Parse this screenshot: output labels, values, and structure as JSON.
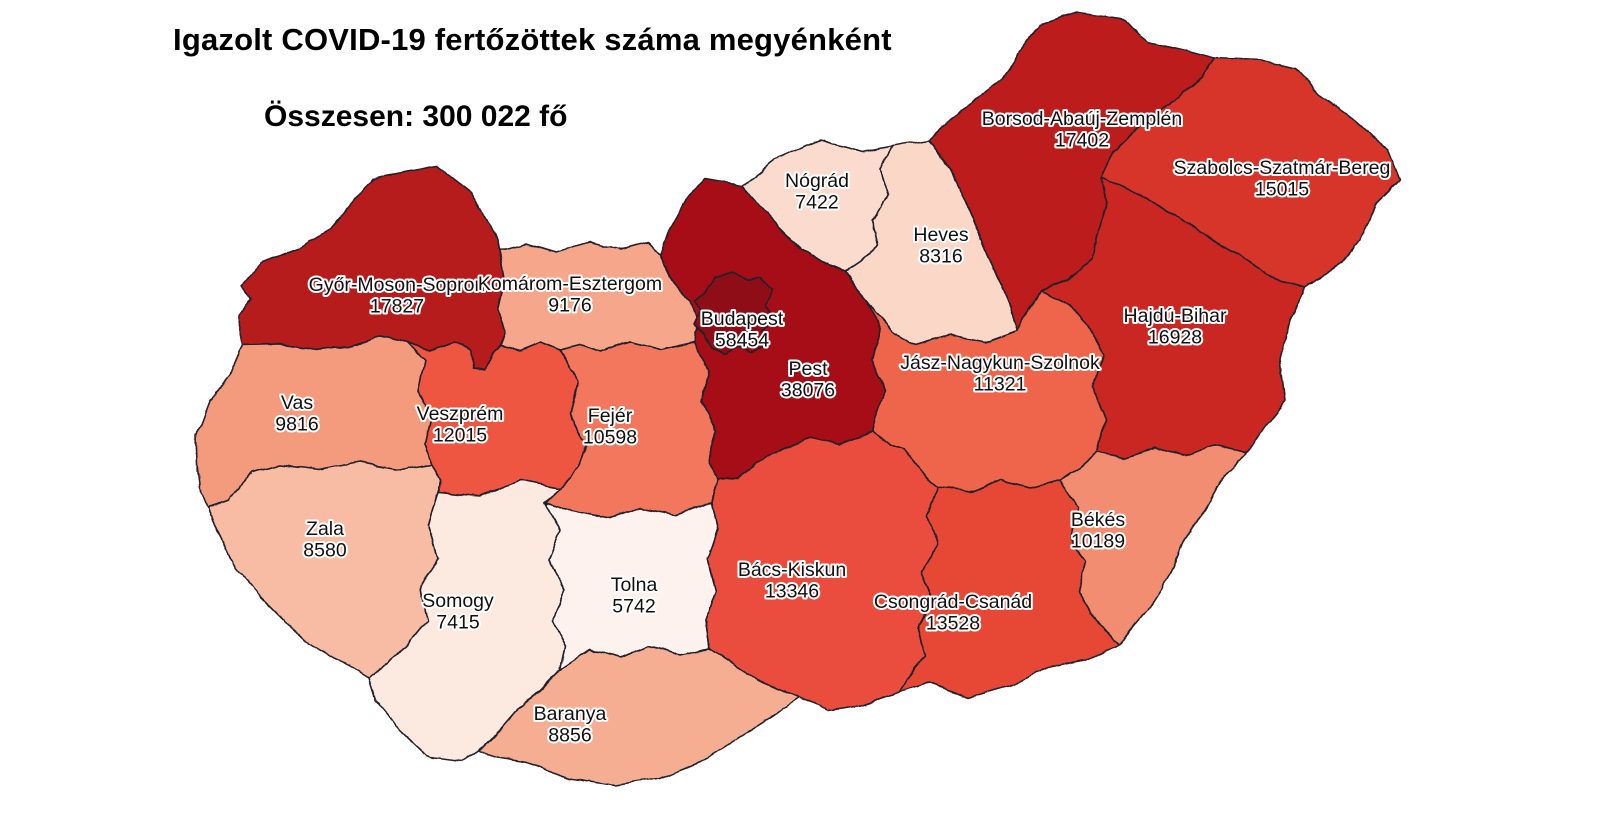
{
  "title": "Igazolt COVID-19 fertőzöttek száma megyénként",
  "subtitle": "Összesen: 300 022 fő",
  "map": {
    "background_color": "#ffffff",
    "border_color": "#20202c",
    "label_color": "#101010",
    "label_halo_color": "#ffffff",
    "counties": [
      {
        "id": "gyor-moson-sopron",
        "name": "Győr-Moson-Sopron",
        "value": "17827",
        "color": "#b71a1c"
      },
      {
        "id": "komarom-esztergom",
        "name": "Komárom-Esztergom",
        "value": "9176",
        "color": "#f6a78b"
      },
      {
        "id": "nograd",
        "name": "Nógrád",
        "value": "7422",
        "color": "#fbdbcd"
      },
      {
        "id": "heves",
        "name": "Heves",
        "value": "8316",
        "color": "#fbd7c7"
      },
      {
        "id": "borsod-abauj-zemplen",
        "name": "Borsod-Abaúj-Zemplén",
        "value": "17402",
        "color": "#bc1b1c"
      },
      {
        "id": "szabolcs-szatmar-bereg",
        "name": "Szabolcs-Szatmár-Bereg",
        "value": "15015",
        "color": "#d8352a"
      },
      {
        "id": "vas",
        "name": "Vas",
        "value": "9816",
        "color": "#f49a7d"
      },
      {
        "id": "veszprem",
        "name": "Veszprém",
        "value": "12015",
        "color": "#ef5742"
      },
      {
        "id": "fejer",
        "name": "Fejér",
        "value": "10598",
        "color": "#f2775d"
      },
      {
        "id": "pest",
        "name": "Pest",
        "value": "38076",
        "color": "#a61117"
      },
      {
        "id": "budapest",
        "name": "Budapest",
        "value": "58454",
        "color": "#8e1014"
      },
      {
        "id": "hajdu-bihar",
        "name": "Hajdú-Bihar",
        "value": "16928",
        "color": "#ca2620"
      },
      {
        "id": "jasz-nagykun-szolnok",
        "name": "Jász-Nagykun-Szolnok",
        "value": "11321",
        "color": "#ee654c"
      },
      {
        "id": "zala",
        "name": "Zala",
        "value": "8580",
        "color": "#f8bba3"
      },
      {
        "id": "somogy",
        "name": "Somogy",
        "value": "7415",
        "color": "#fce9df"
      },
      {
        "id": "tolna",
        "name": "Tolna",
        "value": "5742",
        "color": "#fdf2ed"
      },
      {
        "id": "baranya",
        "name": "Baranya",
        "value": "8856",
        "color": "#f6ae93"
      },
      {
        "id": "bacs-kiskun",
        "name": "Bács-Kiskun",
        "value": "13346",
        "color": "#ea4e3c"
      },
      {
        "id": "csongrad-csanad",
        "name": "Csongrád-Csanád",
        "value": "13528",
        "color": "#e74634"
      },
      {
        "id": "bekes",
        "name": "Békés",
        "value": "10189",
        "color": "#f28d72"
      }
    ]
  }
}
